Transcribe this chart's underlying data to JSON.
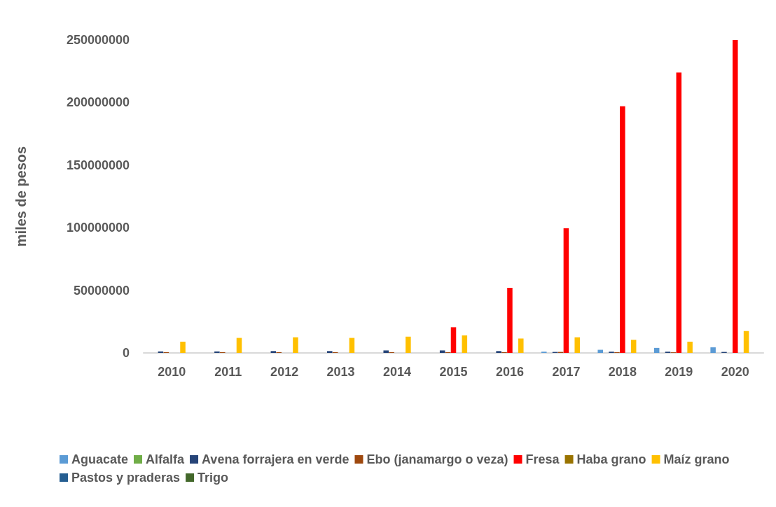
{
  "chart_data": {
    "type": "bar",
    "ylabel": "miles de pesos",
    "categories": [
      "2010",
      "2011",
      "2012",
      "2013",
      "2014",
      "2015",
      "2016",
      "2017",
      "2018",
      "2019",
      "2020"
    ],
    "ylim": [
      0,
      250000000
    ],
    "yticks": [
      0,
      50000000,
      100000000,
      150000000,
      200000000,
      250000000
    ],
    "grid": false,
    "legend": "bottom",
    "series": [
      {
        "name": "Aguacate",
        "color": "#5b9bd5",
        "values": [
          0,
          0,
          0,
          0,
          0,
          0,
          0,
          1000000,
          2500000,
          4000000,
          4500000
        ]
      },
      {
        "name": "Alfalfa",
        "color": "#70ad47",
        "values": [
          0,
          0,
          0,
          0,
          0,
          0,
          0,
          0,
          0,
          0,
          0
        ]
      },
      {
        "name": "Avena forrajera en verde",
        "color": "#264478",
        "values": [
          1200000,
          1200000,
          1500000,
          1500000,
          2000000,
          2000000,
          1500000,
          800000,
          1000000,
          1000000,
          800000
        ]
      },
      {
        "name": "Ebo (janamargo o veza)",
        "color": "#9e480e",
        "values": [
          600000,
          600000,
          600000,
          600000,
          600000,
          600000,
          600000,
          800000,
          600000,
          500000,
          0
        ]
      },
      {
        "name": "Fresa",
        "color": "#ff0000",
        "values": [
          0,
          0,
          0,
          0,
          0,
          20500000,
          52000000,
          99500000,
          197000000,
          224000000,
          250000000
        ]
      },
      {
        "name": "Haba grano",
        "color": "#997300",
        "values": [
          0,
          0,
          0,
          0,
          0,
          0,
          0,
          0,
          0,
          0,
          0
        ]
      },
      {
        "name": "Maíz grano",
        "color": "#ffc000",
        "values": [
          9000000,
          12000000,
          12500000,
          12000000,
          13000000,
          14000000,
          11500000,
          12500000,
          10500000,
          9000000,
          17500000
        ]
      },
      {
        "name": "Pastos y praderas",
        "color": "#255e91",
        "values": [
          0,
          0,
          0,
          0,
          0,
          0,
          0,
          0,
          0,
          0,
          0
        ]
      },
      {
        "name": "Trigo",
        "color": "#43682b",
        "values": [
          0,
          0,
          0,
          0,
          0,
          0,
          0,
          0,
          0,
          0,
          0
        ]
      }
    ]
  }
}
